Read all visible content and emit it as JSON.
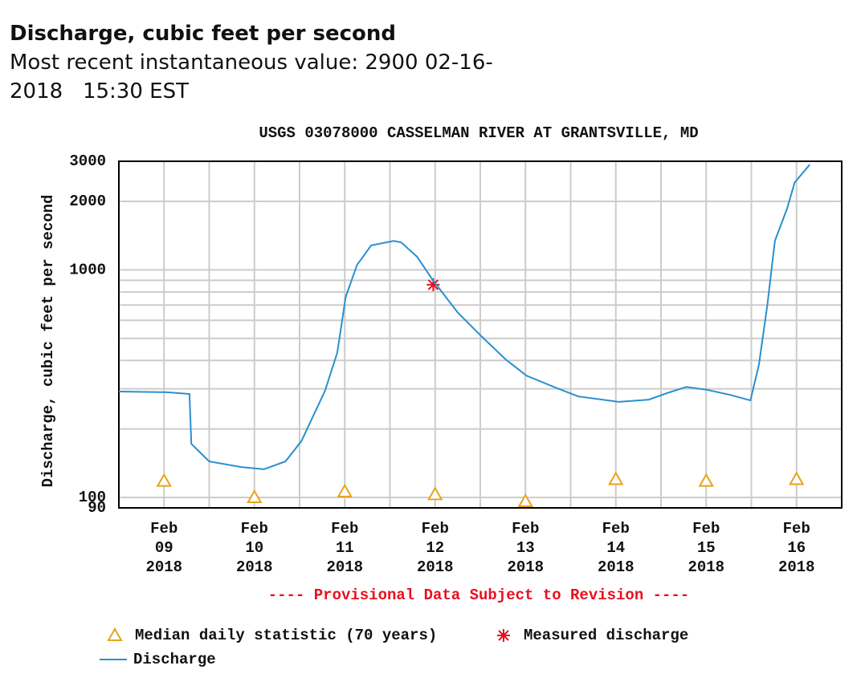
{
  "header": {
    "title": "Discharge, cubic feet per second",
    "subtitle": "Most recent instantaneous value: 2900 02-16-2018   15:30 EST"
  },
  "chart_data": {
    "type": "line",
    "title": "USGS 03078000 CASSELMAN RIVER AT GRANTSVILLE, MD",
    "y_label": "Discharge, cubic feet per second",
    "note": "---- Provisional Data Subject to Revision ----",
    "ylog": true,
    "grid": true,
    "ylim": [
      90,
      3000
    ],
    "yticks": [
      90,
      100,
      1000,
      2000,
      3000
    ],
    "yminor": [
      200,
      300,
      400,
      500,
      600,
      700,
      800,
      900
    ],
    "xlim": [
      "2018-02-09T00:00",
      "2018-02-17T00:00"
    ],
    "xticks": [
      {
        "value": "2018-02-09T12:00",
        "label": [
          "Feb",
          "09",
          "2018"
        ]
      },
      {
        "value": "2018-02-10T12:00",
        "label": [
          "Feb",
          "10",
          "2018"
        ]
      },
      {
        "value": "2018-02-11T12:00",
        "label": [
          "Feb",
          "11",
          "2018"
        ]
      },
      {
        "value": "2018-02-12T12:00",
        "label": [
          "Feb",
          "12",
          "2018"
        ]
      },
      {
        "value": "2018-02-13T12:00",
        "label": [
          "Feb",
          "13",
          "2018"
        ]
      },
      {
        "value": "2018-02-14T12:00",
        "label": [
          "Feb",
          "14",
          "2018"
        ]
      },
      {
        "value": "2018-02-15T12:00",
        "label": [
          "Feb",
          "15",
          "2018"
        ]
      },
      {
        "value": "2018-02-16T12:00",
        "label": [
          "Feb",
          "16",
          "2018"
        ]
      }
    ],
    "xminor": [
      "2018-02-10T00:00",
      "2018-02-11T00:00",
      "2018-02-12T00:00",
      "2018-02-13T00:00",
      "2018-02-14T00:00",
      "2018-02-15T00:00",
      "2018-02-16T00:00"
    ],
    "series": [
      {
        "name": "Median daily statistic (70 years)",
        "type": "scatter",
        "marker": "triangle",
        "color": "#e8a317",
        "x": [
          "2018-02-09T12:00",
          "2018-02-10T12:00",
          "2018-02-11T12:00",
          "2018-02-12T12:00",
          "2018-02-13T12:00",
          "2018-02-14T12:00",
          "2018-02-15T12:00",
          "2018-02-16T12:00"
        ],
        "values": [
          118,
          100,
          106,
          103,
          96,
          120,
          118,
          120
        ]
      },
      {
        "name": "Measured discharge",
        "type": "scatter",
        "marker": "asterisk",
        "color": "#e8101e",
        "x": [
          "2018-02-12T11:30"
        ],
        "values": [
          860
        ]
      },
      {
        "name": "Discharge",
        "type": "line",
        "color": "#2a8fd0",
        "x": [
          "2018-02-09T00:00",
          "2018-02-09T12:45",
          "2018-02-09T18:45",
          "2018-02-09T19:15",
          "2018-02-10T00:00",
          "2018-02-10T08:30",
          "2018-02-10T14:30",
          "2018-02-10T20:15",
          "2018-02-11T00:30",
          "2018-02-11T06:45",
          "2018-02-11T10:00",
          "2018-02-11T12:15",
          "2018-02-11T15:15",
          "2018-02-11T19:00",
          "2018-02-12T01:00",
          "2018-02-12T03:00",
          "2018-02-12T07:15",
          "2018-02-12T11:30",
          "2018-02-12T18:00",
          "2018-02-13T00:30",
          "2018-02-13T06:45",
          "2018-02-13T12:15",
          "2018-02-13T19:30",
          "2018-02-14T02:00",
          "2018-02-14T12:45",
          "2018-02-14T20:45",
          "2018-02-15T01:30",
          "2018-02-15T06:45",
          "2018-02-15T12:15",
          "2018-02-15T18:30",
          "2018-02-15T23:45",
          "2018-02-16T02:00",
          "2018-02-16T04:15",
          "2018-02-16T06:15",
          "2018-02-16T09:30",
          "2018-02-16T11:30",
          "2018-02-16T15:30"
        ],
        "values": [
          292,
          290,
          285,
          172,
          144,
          136,
          133,
          144,
          177,
          294,
          432,
          760,
          1050,
          1280,
          1340,
          1320,
          1140,
          896,
          650,
          507,
          404,
          343,
          306,
          278,
          263,
          269,
          287,
          306,
          297,
          282,
          267,
          382,
          701,
          1340,
          1860,
          2420,
          2900
        ]
      }
    ]
  }
}
